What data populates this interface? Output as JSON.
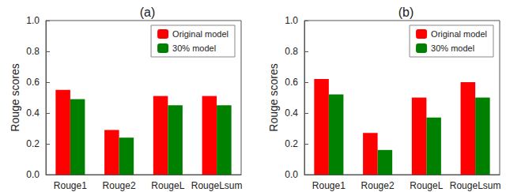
{
  "chart_data": [
    {
      "type": "bar",
      "title": "(a)",
      "ylabel": "Rouge scores",
      "categories": [
        "Rouge1",
        "Rouge2",
        "RougeL",
        "RougeLsum"
      ],
      "series": [
        {
          "name": "Original model",
          "color": "#ff0000",
          "values": [
            0.55,
            0.29,
            0.51,
            0.51
          ]
        },
        {
          "name": "30% model",
          "color": "#008000",
          "values": [
            0.49,
            0.24,
            0.45,
            0.45
          ]
        }
      ],
      "ylim": [
        0,
        1
      ],
      "yticks": [
        {
          "value": 0,
          "label": "0.0"
        },
        0.2,
        0.4,
        0.6,
        0.8,
        {
          "value": 1,
          "label": "1.0"
        }
      ],
      "grid": false,
      "legend": "upper right"
    },
    {
      "type": "bar",
      "title": "(b)",
      "ylabel": "Rouge scores",
      "categories": [
        "Rouge1",
        "Rouge2",
        "RougeL",
        "RougeLsum"
      ],
      "series": [
        {
          "name": "Original model",
          "color": "#ff0000",
          "values": [
            0.62,
            0.27,
            0.5,
            0.6
          ]
        },
        {
          "name": "30% model",
          "color": "#008000",
          "values": [
            0.52,
            0.16,
            0.37,
            0.5
          ]
        }
      ],
      "ylim": [
        0,
        1
      ],
      "yticks": [
        {
          "value": 0,
          "label": "0.0"
        },
        0.2,
        0.4,
        0.6,
        0.8,
        {
          "value": 1,
          "label": "1.0"
        }
      ],
      "grid": false,
      "legend": "upper right"
    }
  ]
}
